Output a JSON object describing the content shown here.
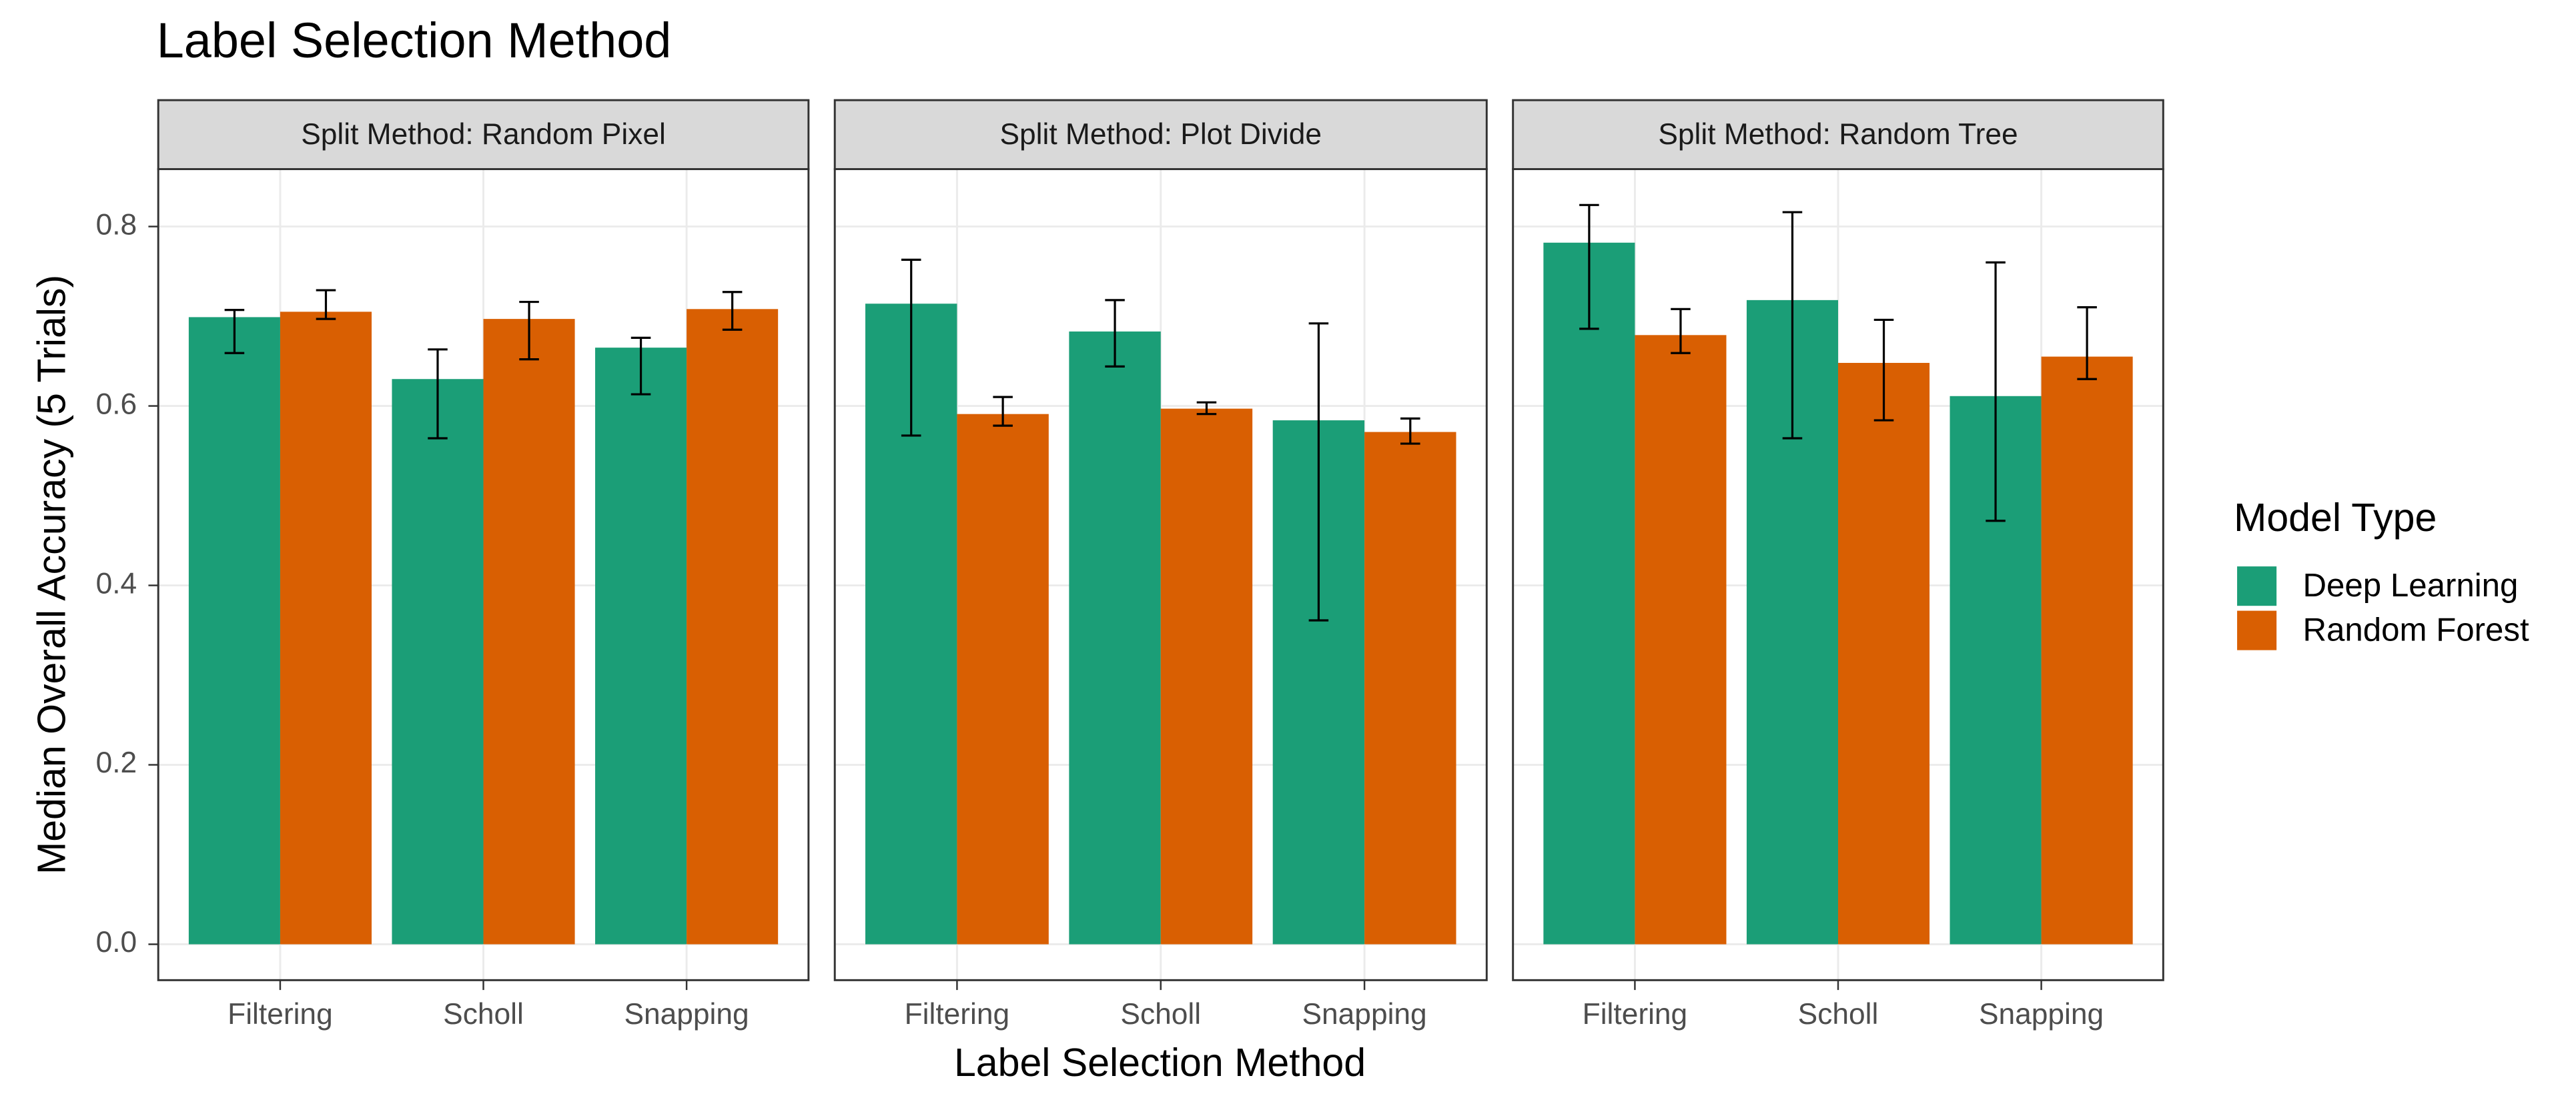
{
  "chart_data": {
    "type": "bar",
    "title": "Label Selection Method",
    "x_label": "Label Selection Method",
    "y_label": "Median Overall Accuracy (5 Trials)",
    "legend_title": "Model Type",
    "legend_position": "right",
    "grid": true,
    "ylim": [
      -0.04,
      0.864
    ],
    "yticks": [
      {
        "value": 0,
        "label": "0.0"
      },
      0.2,
      0.4,
      0.6,
      0.8
    ],
    "series": [
      {
        "name": "Deep Learning",
        "color": "#1b9e77"
      },
      {
        "name": "Random Forest",
        "color": "#d95f02"
      }
    ],
    "facets": [
      {
        "title": "Split Method: Random Pixel",
        "categories": [
          "Filtering",
          "Scholl",
          "Snapping"
        ],
        "series": [
          {
            "values": [
              0.699,
              0.63,
              0.665
            ],
            "lower": [
              0.659,
              0.564,
              0.613
            ],
            "upper": [
              0.707,
              0.663,
              0.676
            ]
          },
          {
            "values": [
              0.705,
              0.697,
              0.708
            ],
            "lower": [
              0.697,
              0.652,
              0.685
            ],
            "upper": [
              0.729,
              0.716,
              0.727
            ]
          }
        ]
      },
      {
        "title": "Split Method: Plot Divide",
        "categories": [
          "Filtering",
          "Scholl",
          "Snapping"
        ],
        "series": [
          {
            "values": [
              0.714,
              0.683,
              0.584
            ],
            "lower": [
              0.567,
              0.644,
              0.361
            ],
            "upper": [
              0.763,
              0.718,
              0.692
            ]
          },
          {
            "values": [
              0.591,
              0.597,
              0.571
            ],
            "lower": [
              0.578,
              0.591,
              0.558
            ],
            "upper": [
              0.61,
              0.604,
              0.586
            ]
          }
        ]
      },
      {
        "title": "Split Method: Random Tree",
        "categories": [
          "Filtering",
          "Scholl",
          "Snapping"
        ],
        "series": [
          {
            "values": [
              0.782,
              0.718,
              0.611
            ],
            "lower": [
              0.686,
              0.564,
              0.472
            ],
            "upper": [
              0.824,
              0.816,
              0.76
            ]
          },
          {
            "values": [
              0.679,
              0.648,
              0.655
            ],
            "lower": [
              0.659,
              0.584,
              0.63
            ],
            "upper": [
              0.708,
              0.696,
              0.71
            ]
          }
        ]
      }
    ]
  }
}
